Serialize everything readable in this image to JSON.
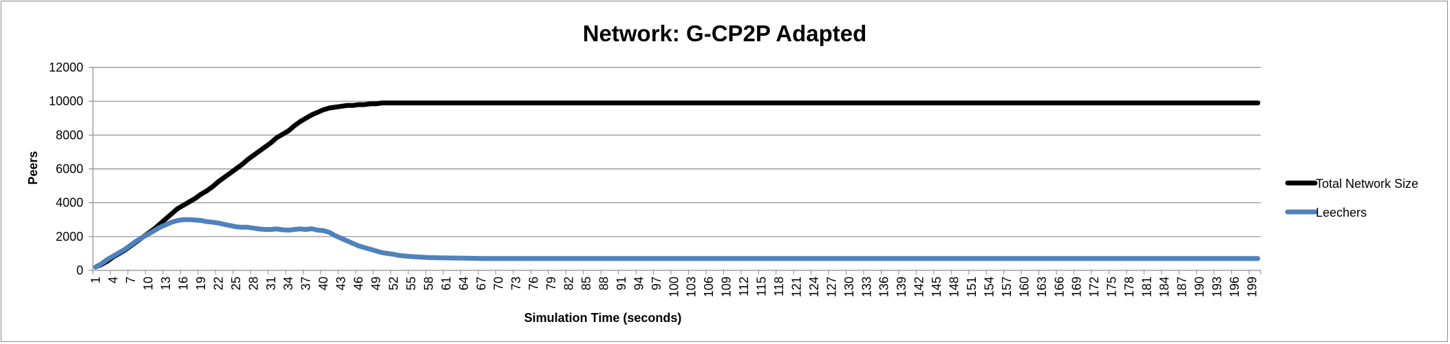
{
  "chart_data": {
    "type": "line",
    "title": "Network: G-CP2P Adapted",
    "xlabel": "Simulation Time (seconds)",
    "ylabel": "Peers",
    "xlim": [
      1,
      200
    ],
    "ylim": [
      0,
      12000
    ],
    "y_ticks": [
      "0",
      "2000",
      "4000",
      "6000",
      "8000",
      "10000",
      "12000"
    ],
    "x_tick_step": 3,
    "grid": "horizontal",
    "legend_position": "right",
    "series": [
      {
        "name": "Total Network Size",
        "color": "#000000",
        "points": [
          [
            1,
            200
          ],
          [
            2,
            350
          ],
          [
            3,
            550
          ],
          [
            4,
            800
          ],
          [
            5,
            1000
          ],
          [
            6,
            1200
          ],
          [
            7,
            1450
          ],
          [
            8,
            1700
          ],
          [
            9,
            1950
          ],
          [
            10,
            2200
          ],
          [
            11,
            2450
          ],
          [
            12,
            2750
          ],
          [
            13,
            3050
          ],
          [
            14,
            3350
          ],
          [
            15,
            3650
          ],
          [
            16,
            3850
          ],
          [
            17,
            4050
          ],
          [
            18,
            4250
          ],
          [
            19,
            4500
          ],
          [
            20,
            4700
          ],
          [
            21,
            4950
          ],
          [
            22,
            5250
          ],
          [
            23,
            5500
          ],
          [
            24,
            5750
          ],
          [
            25,
            6000
          ],
          [
            26,
            6250
          ],
          [
            27,
            6550
          ],
          [
            28,
            6800
          ],
          [
            29,
            7050
          ],
          [
            30,
            7300
          ],
          [
            31,
            7550
          ],
          [
            32,
            7850
          ],
          [
            33,
            8050
          ],
          [
            34,
            8250
          ],
          [
            35,
            8550
          ],
          [
            36,
            8800
          ],
          [
            37,
            9000
          ],
          [
            38,
            9200
          ],
          [
            39,
            9350
          ],
          [
            40,
            9500
          ],
          [
            41,
            9600
          ],
          [
            42,
            9650
          ],
          [
            43,
            9700
          ],
          [
            44,
            9750
          ],
          [
            45,
            9750
          ],
          [
            46,
            9800
          ],
          [
            47,
            9800
          ],
          [
            48,
            9850
          ],
          [
            49,
            9850
          ],
          [
            50,
            9900
          ],
          [
            52,
            9900
          ],
          [
            60,
            9900
          ],
          [
            80,
            9900
          ],
          [
            100,
            9900
          ],
          [
            120,
            9900
          ],
          [
            140,
            9900
          ],
          [
            160,
            9900
          ],
          [
            180,
            9900
          ],
          [
            200,
            9900
          ]
        ]
      },
      {
        "name": "Leechers",
        "color": "#4f81bd",
        "points": [
          [
            1,
            200
          ],
          [
            2,
            400
          ],
          [
            3,
            650
          ],
          [
            4,
            850
          ],
          [
            5,
            1050
          ],
          [
            6,
            1250
          ],
          [
            7,
            1500
          ],
          [
            8,
            1750
          ],
          [
            9,
            1950
          ],
          [
            10,
            2150
          ],
          [
            11,
            2350
          ],
          [
            12,
            2550
          ],
          [
            13,
            2700
          ],
          [
            14,
            2850
          ],
          [
            15,
            2950
          ],
          [
            16,
            3000
          ],
          [
            17,
            3000
          ],
          [
            18,
            2980
          ],
          [
            19,
            2950
          ],
          [
            20,
            2880
          ],
          [
            21,
            2850
          ],
          [
            22,
            2800
          ],
          [
            23,
            2720
          ],
          [
            24,
            2650
          ],
          [
            25,
            2580
          ],
          [
            26,
            2550
          ],
          [
            27,
            2550
          ],
          [
            28,
            2500
          ],
          [
            29,
            2450
          ],
          [
            30,
            2420
          ],
          [
            31,
            2420
          ],
          [
            32,
            2450
          ],
          [
            33,
            2400
          ],
          [
            34,
            2380
          ],
          [
            35,
            2420
          ],
          [
            36,
            2450
          ],
          [
            37,
            2420
          ],
          [
            38,
            2460
          ],
          [
            39,
            2380
          ],
          [
            40,
            2350
          ],
          [
            41,
            2250
          ],
          [
            42,
            2050
          ],
          [
            43,
            1900
          ],
          [
            44,
            1750
          ],
          [
            45,
            1600
          ],
          [
            46,
            1450
          ],
          [
            47,
            1350
          ],
          [
            48,
            1250
          ],
          [
            49,
            1150
          ],
          [
            50,
            1050
          ],
          [
            51,
            1000
          ],
          [
            52,
            950
          ],
          [
            53,
            880
          ],
          [
            54,
            850
          ],
          [
            55,
            820
          ],
          [
            56,
            800
          ],
          [
            57,
            780
          ],
          [
            58,
            760
          ],
          [
            59,
            750
          ],
          [
            60,
            740
          ],
          [
            62,
            730
          ],
          [
            64,
            720
          ],
          [
            66,
            710
          ],
          [
            67,
            700
          ],
          [
            70,
            700
          ],
          [
            100,
            700
          ],
          [
            130,
            700
          ],
          [
            160,
            700
          ],
          [
            200,
            700
          ]
        ]
      }
    ]
  }
}
